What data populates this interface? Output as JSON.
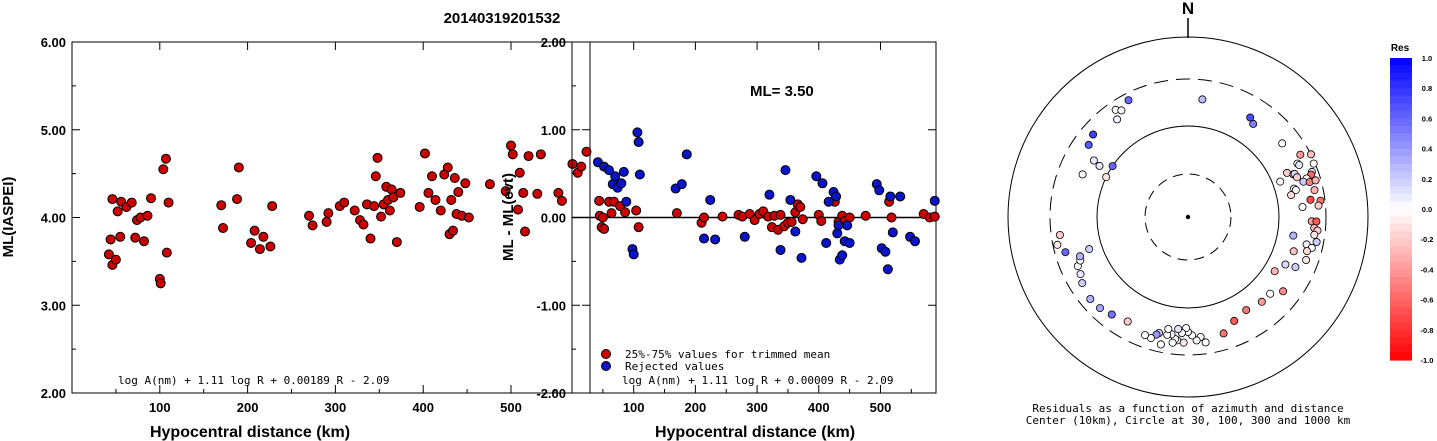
{
  "title": "20140319201532",
  "chart_data": [
    {
      "type": "scatter",
      "xlabel": "Hypocentral distance (km)",
      "ylabel": "ML(IASPEI)",
      "xlim": [
        0,
        590
      ],
      "ylim": [
        2.0,
        6.0
      ],
      "x_ticks": [
        "100",
        "200",
        "300",
        "400",
        "500"
      ],
      "y_ticks": [
        "2.00",
        "3.00",
        "4.00",
        "5.00",
        "6.00"
      ],
      "formula": "log A(nm) + 1.11 log R + 0.00189 R - 2.09",
      "point_color": "#cc0000",
      "points": [
        [
          42,
          3.58
        ],
        [
          44,
          3.75
        ],
        [
          46,
          3.46
        ],
        [
          46,
          4.21
        ],
        [
          50,
          3.52
        ],
        [
          52,
          4.07
        ],
        [
          55,
          3.78
        ],
        [
          56,
          4.18
        ],
        [
          62,
          4.12
        ],
        [
          68,
          4.17
        ],
        [
          72,
          3.77
        ],
        [
          74,
          3.97
        ],
        [
          78,
          4.0
        ],
        [
          82,
          3.73
        ],
        [
          86,
          4.02
        ],
        [
          90,
          4.22
        ],
        [
          100,
          3.3
        ],
        [
          101,
          3.25
        ],
        [
          104,
          4.55
        ],
        [
          107,
          4.67
        ],
        [
          108,
          3.6
        ],
        [
          110,
          4.17
        ],
        [
          170,
          4.14
        ],
        [
          172,
          3.88
        ],
        [
          188,
          4.21
        ],
        [
          190,
          4.57
        ],
        [
          204,
          3.71
        ],
        [
          208,
          3.85
        ],
        [
          214,
          3.64
        ],
        [
          218,
          3.78
        ],
        [
          226,
          3.67
        ],
        [
          228,
          4.13
        ],
        [
          270,
          4.02
        ],
        [
          274,
          3.91
        ],
        [
          290,
          3.95
        ],
        [
          292,
          4.05
        ],
        [
          305,
          4.13
        ],
        [
          310,
          4.17
        ],
        [
          322,
          4.08
        ],
        [
          328,
          3.97
        ],
        [
          332,
          3.92
        ],
        [
          336,
          4.15
        ],
        [
          340,
          3.76
        ],
        [
          344,
          4.13
        ],
        [
          346,
          4.47
        ],
        [
          348,
          4.68
        ],
        [
          352,
          4.01
        ],
        [
          355,
          4.15
        ],
        [
          358,
          4.35
        ],
        [
          360,
          4.2
        ],
        [
          362,
          4.08
        ],
        [
          364,
          4.32
        ],
        [
          366,
          4.23
        ],
        [
          370,
          3.72
        ],
        [
          374,
          4.28
        ],
        [
          396,
          4.12
        ],
        [
          402,
          4.73
        ],
        [
          406,
          4.28
        ],
        [
          410,
          4.47
        ],
        [
          414,
          4.2
        ],
        [
          420,
          4.08
        ],
        [
          424,
          4.49
        ],
        [
          428,
          4.57
        ],
        [
          430,
          3.81
        ],
        [
          432,
          4.2
        ],
        [
          434,
          3.85
        ],
        [
          436,
          4.45
        ],
        [
          438,
          4.04
        ],
        [
          440,
          4.29
        ],
        [
          444,
          4.02
        ],
        [
          448,
          4.39
        ],
        [
          452,
          4.0
        ],
        [
          476,
          4.38
        ],
        [
          494,
          4.3
        ],
        [
          500,
          4.82
        ],
        [
          502,
          4.72
        ],
        [
          508,
          4.09
        ],
        [
          510,
          4.51
        ],
        [
          514,
          4.28
        ],
        [
          516,
          3.84
        ],
        [
          520,
          4.7
        ],
        [
          530,
          4.27
        ],
        [
          534,
          4.72
        ],
        [
          554,
          4.28
        ],
        [
          558,
          4.19
        ],
        [
          570,
          4.61
        ],
        [
          576,
          4.51
        ],
        [
          580,
          4.58
        ],
        [
          586,
          4.75
        ]
      ]
    },
    {
      "type": "scatter",
      "xlabel": "Hypocentral distance (km)",
      "ylabel": "ML - ML(evt)",
      "xlim": [
        0,
        590
      ],
      "ylim": [
        -2.0,
        2.0
      ],
      "x_ticks": [
        "100",
        "200",
        "300",
        "400",
        "500"
      ],
      "y_ticks": [
        "-2.00",
        "-1.00",
        "0.00",
        "1.00",
        "2.00"
      ],
      "annotation": "ML= 3.50",
      "formula": "log A(nm) + 1.11 log R + 0.00009 R - 2.09",
      "legend": [
        {
          "label": "25%-75% values for trimmed mean",
          "color": "#cc0000"
        },
        {
          "label": "Rejected values",
          "color": "#0a14c8"
        }
      ],
      "series": [
        {
          "name": "25%-75% values for trimmed mean",
          "color": "#cc0000",
          "points": [
            [
              44,
              0.19
            ],
            [
              45,
              0.02
            ],
            [
              48,
              -0.11
            ],
            [
              50,
              0.0
            ],
            [
              52,
              -0.13
            ],
            [
              60,
              0.18
            ],
            [
              64,
              0.05
            ],
            [
              68,
              0.18
            ],
            [
              78,
              0.13
            ],
            [
              86,
              0.06
            ],
            [
              104,
              0.08
            ],
            [
              108,
              -0.11
            ],
            [
              170,
              0.05
            ],
            [
              210,
              -0.06
            ],
            [
              214,
              0.0
            ],
            [
              244,
              0.01
            ],
            [
              270,
              0.03
            ],
            [
              276,
              0.01
            ],
            [
              288,
              0.04
            ],
            [
              296,
              -0.03
            ],
            [
              304,
              0.04
            ],
            [
              310,
              0.07
            ],
            [
              318,
              0.01
            ],
            [
              324,
              -0.11
            ],
            [
              328,
              0.02
            ],
            [
              334,
              -0.14
            ],
            [
              338,
              0.03
            ],
            [
              344,
              -0.1
            ],
            [
              350,
              -0.06
            ],
            [
              356,
              -0.05
            ],
            [
              362,
              0.06
            ],
            [
              366,
              0.15
            ],
            [
              370,
              0.12
            ],
            [
              374,
              -0.02
            ],
            [
              400,
              0.03
            ],
            [
              404,
              -0.04
            ],
            [
              426,
              0.18
            ],
            [
              432,
              -0.05
            ],
            [
              438,
              0.02
            ],
            [
              442,
              -0.04
            ],
            [
              450,
              0.0
            ],
            [
              476,
              0.02
            ],
            [
              514,
              0.18
            ],
            [
              518,
              0.0
            ],
            [
              570,
              0.04
            ],
            [
              580,
              0.0
            ],
            [
              588,
              0.01
            ]
          ]
        },
        {
          "name": "Rejected values",
          "color": "#0a14c8",
          "points": [
            [
              42,
              0.63
            ],
            [
              52,
              0.58
            ],
            [
              60,
              0.54
            ],
            [
              66,
              0.38
            ],
            [
              70,
              0.47
            ],
            [
              74,
              0.34
            ],
            [
              80,
              0.39
            ],
            [
              84,
              0.52
            ],
            [
              88,
              0.18
            ],
            [
              98,
              -0.36
            ],
            [
              100,
              -0.42
            ],
            [
              106,
              0.97
            ],
            [
              108,
              0.86
            ],
            [
              110,
              0.49
            ],
            [
              168,
              0.33
            ],
            [
              178,
              0.38
            ],
            [
              186,
              0.72
            ],
            [
              214,
              -0.24
            ],
            [
              224,
              0.2
            ],
            [
              232,
              -0.25
            ],
            [
              280,
              -0.22
            ],
            [
              320,
              0.26
            ],
            [
              338,
              -0.37
            ],
            [
              346,
              0.54
            ],
            [
              354,
              0.2
            ],
            [
              362,
              -0.16
            ],
            [
              372,
              -0.46
            ],
            [
              396,
              0.47
            ],
            [
              406,
              0.39
            ],
            [
              412,
              -0.29
            ],
            [
              416,
              0.18
            ],
            [
              424,
              0.29
            ],
            [
              428,
              0.24
            ],
            [
              430,
              -0.18
            ],
            [
              432,
              -0.09
            ],
            [
              434,
              -0.48
            ],
            [
              438,
              -0.43
            ],
            [
              442,
              -0.27
            ],
            [
              446,
              -0.09
            ],
            [
              450,
              -0.29
            ],
            [
              494,
              0.38
            ],
            [
              498,
              0.31
            ],
            [
              502,
              -0.35
            ],
            [
              508,
              -0.39
            ],
            [
              512,
              -0.59
            ],
            [
              516,
              0.24
            ],
            [
              520,
              -0.17
            ],
            [
              532,
              0.24
            ],
            [
              548,
              -0.22
            ],
            [
              556,
              -0.27
            ],
            [
              588,
              0.19
            ]
          ]
        }
      ]
    },
    {
      "type": "scatter",
      "subtype": "polar",
      "north_label": "N",
      "caption": [
        "Residuals as a function of azimuth and distance",
        "Center (10km), Circle at 30, 100, 300 and 1000 km"
      ],
      "colorbar_title": "Res",
      "colorbar_ticks": [
        "1.0",
        "0.8",
        "0.6",
        "0.4",
        "0.2",
        "0.0",
        "-0.2",
        "-0.4",
        "-0.6",
        "-0.8",
        "-1.0"
      ],
      "points": [
        [
          7,
          0.25
        ],
        [
          32,
          0.7
        ],
        [
          35,
          0.5
        ],
        [
          52,
          0.0
        ],
        [
          61,
          -0.4
        ],
        [
          63,
          -0.25
        ],
        [
          64,
          0.0
        ],
        [
          65,
          0.1
        ],
        [
          66,
          -0.2
        ],
        [
          67,
          0.0
        ],
        [
          68,
          0.05
        ],
        [
          68,
          0.15
        ],
        [
          69,
          0.0
        ],
        [
          70,
          0.1
        ],
        [
          70,
          -0.2
        ],
        [
          71,
          -0.6
        ],
        [
          72,
          0.0
        ],
        [
          73,
          0.2
        ],
        [
          74,
          -0.5
        ],
        [
          74,
          -0.3
        ],
        [
          75,
          0.05
        ],
        [
          76,
          0.0
        ],
        [
          78,
          -0.15
        ],
        [
          78,
          -0.3
        ],
        [
          82,
          -0.7
        ],
        [
          83,
          -0.55
        ],
        [
          85,
          0.0
        ],
        [
          85,
          -0.2
        ],
        [
          92,
          -0.4
        ],
        [
          92,
          -0.65
        ],
        [
          95,
          -0.3
        ],
        [
          96,
          -0.2
        ],
        [
          98,
          -0.1
        ],
        [
          100,
          0.3
        ],
        [
          101,
          0.2
        ],
        [
          103,
          0.05
        ],
        [
          104,
          0.0
        ],
        [
          106,
          -0.15
        ],
        [
          108,
          -0.25
        ],
        [
          110,
          -0.1
        ],
        [
          115,
          0.2
        ],
        [
          116,
          0.15
        ],
        [
          122,
          -0.3
        ],
        [
          128,
          -0.45
        ],
        [
          133,
          0.0
        ],
        [
          139,
          -0.4
        ],
        [
          148,
          -0.55
        ],
        [
          156,
          -0.65
        ],
        [
          163,
          -0.55
        ],
        [
          172,
          0.0
        ],
        [
          174,
          0.0
        ],
        [
          176,
          0.0
        ],
        [
          178,
          0.0
        ],
        [
          180,
          0.0
        ],
        [
          181,
          0.0
        ],
        [
          182,
          -0.1
        ],
        [
          183,
          0.0
        ],
        [
          185,
          0.0
        ],
        [
          185,
          0.1
        ],
        [
          186,
          0.0
        ],
        [
          187,
          0.0
        ],
        [
          188,
          0.0
        ],
        [
          190,
          0.0
        ],
        [
          190,
          0.0
        ],
        [
          192,
          0.0
        ],
        [
          194,
          0.2
        ],
        [
          195,
          0.4
        ],
        [
          197,
          0.0
        ],
        [
          200,
          0.0
        ],
        [
          210,
          -0.2
        ],
        [
          218,
          0.55
        ],
        [
          224,
          0.35
        ],
        [
          230,
          0.3
        ],
        [
          238,
          0.2
        ],
        [
          242,
          0.1
        ],
        [
          246,
          0.0
        ],
        [
          248,
          0.0
        ],
        [
          250,
          0.3
        ],
        [
          252,
          0.2
        ],
        [
          254,
          0.6
        ],
        [
          258,
          -0.1
        ],
        [
          262,
          -0.2
        ],
        [
          292,
          0.0
        ],
        [
          296,
          -0.1
        ],
        [
          300,
          0.1
        ],
        [
          301,
          0.1
        ],
        [
          304,
          0.6
        ],
        [
          306,
          0.65
        ],
        [
          311,
          0.75
        ],
        [
          324,
          0.05
        ],
        [
          326,
          0.0
        ],
        [
          328,
          0.0
        ],
        [
          333,
          0.6
        ]
      ]
    }
  ]
}
